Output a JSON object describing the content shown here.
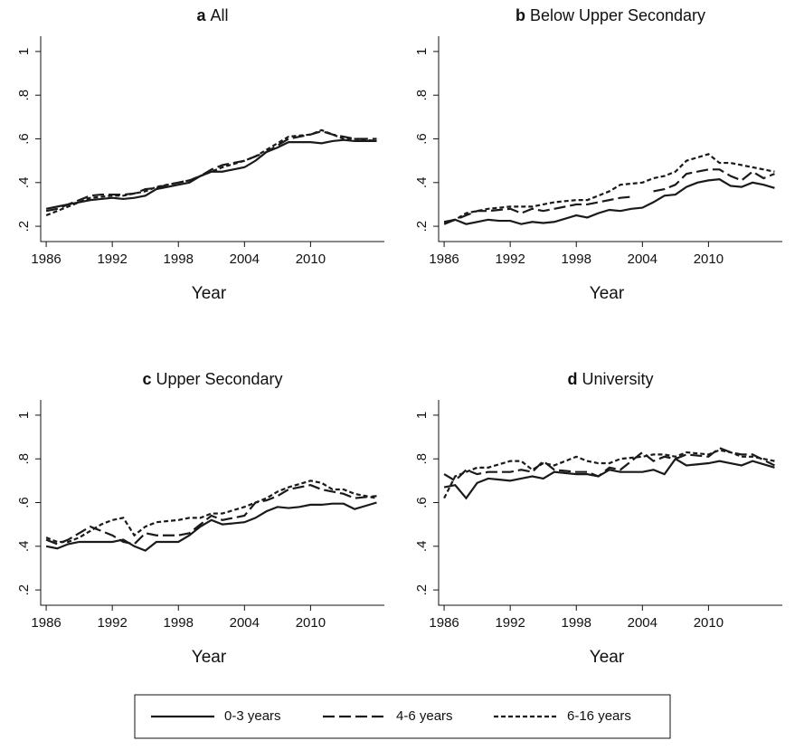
{
  "chart_data": [
    {
      "type": "line",
      "label": "a",
      "title": "All",
      "xlabel": "Year",
      "x": [
        1986,
        1987,
        1988,
        1989,
        1990,
        1991,
        1992,
        1993,
        1994,
        1995,
        1996,
        1997,
        1998,
        1999,
        2000,
        2001,
        2002,
        2003,
        2004,
        2005,
        2006,
        2007,
        2008,
        2009,
        2010,
        2011,
        2012,
        2013,
        2014,
        2015,
        2016
      ],
      "xlim": [
        1985.5,
        2016.7
      ],
      "xticks": [
        1986,
        1992,
        1998,
        2004,
        2010
      ],
      "ylim": [
        0.13,
        1.07
      ],
      "yticks": [
        {
          "value": 0.2,
          "label": ".2"
        },
        {
          "value": 0.4,
          "label": ".4"
        },
        {
          "value": 0.6,
          "label": ".6"
        },
        {
          "value": 0.8,
          "label": ".8"
        },
        1
      ],
      "series": [
        {
          "name": "0-3 years",
          "color": "#1a1a1a",
          "style": "solid",
          "values": [
            0.28,
            0.29,
            0.3,
            0.31,
            0.32,
            0.325,
            0.33,
            0.325,
            0.33,
            0.34,
            0.37,
            0.38,
            0.39,
            0.4,
            0.43,
            0.45,
            0.45,
            0.46,
            0.47,
            0.5,
            0.54,
            0.56,
            0.585,
            0.585,
            0.585,
            0.58,
            0.59,
            0.595,
            0.59,
            0.59,
            0.59
          ]
        },
        {
          "name": "4-6 years",
          "color": "#1a1a1a",
          "style": "longdash",
          "values": [
            0.27,
            0.28,
            0.3,
            0.32,
            0.34,
            0.345,
            0.345,
            0.345,
            0.35,
            0.37,
            0.375,
            0.39,
            0.4,
            0.41,
            0.43,
            0.46,
            0.48,
            0.49,
            0.5,
            0.52,
            0.54,
            0.57,
            0.6,
            0.61,
            0.62,
            0.635,
            0.62,
            0.61,
            0.6,
            0.6,
            0.6
          ]
        },
        {
          "name": "6-16 years",
          "color": "#1a1a1a",
          "style": "shortdash",
          "values": [
            0.25,
            0.27,
            0.29,
            0.31,
            0.33,
            0.335,
            0.34,
            0.34,
            0.35,
            0.36,
            0.38,
            0.39,
            0.4,
            0.41,
            0.43,
            0.45,
            0.47,
            0.485,
            0.5,
            0.52,
            0.55,
            0.58,
            0.61,
            0.615,
            0.62,
            0.64,
            0.62,
            0.6,
            0.6,
            0.595,
            0.59
          ]
        }
      ]
    },
    {
      "type": "line",
      "label": "b",
      "title": "Below Upper Secondary",
      "xlabel": "Year",
      "x": [
        1986,
        1987,
        1988,
        1989,
        1990,
        1991,
        1992,
        1993,
        1994,
        1995,
        1996,
        1997,
        1998,
        1999,
        2000,
        2001,
        2002,
        2003,
        2004,
        2005,
        2006,
        2007,
        2008,
        2009,
        2010,
        2011,
        2012,
        2013,
        2014,
        2015,
        2016
      ],
      "xlim": [
        1985.5,
        2016.7
      ],
      "xticks": [
        1986,
        1992,
        1998,
        2004,
        2010
      ],
      "ylim": [
        0.13,
        1.07
      ],
      "yticks": [
        {
          "value": 0.2,
          "label": ".2"
        },
        {
          "value": 0.4,
          "label": ".4"
        },
        {
          "value": 0.6,
          "label": ".6"
        },
        {
          "value": 0.8,
          "label": ".8"
        },
        1
      ],
      "series": [
        {
          "name": "0-3 years",
          "color": "#1a1a1a",
          "style": "solid",
          "values": [
            0.21,
            0.23,
            0.21,
            0.22,
            0.23,
            0.225,
            0.225,
            0.21,
            0.22,
            0.215,
            0.22,
            0.235,
            0.25,
            0.24,
            0.26,
            0.275,
            0.27,
            0.28,
            0.285,
            0.31,
            0.34,
            0.345,
            0.38,
            0.4,
            0.41,
            0.415,
            0.385,
            0.38,
            0.4,
            0.39,
            0.375
          ]
        },
        {
          "name": "4-6 years",
          "color": "#1a1a1a",
          "style": "longdash",
          "values": [
            0.22,
            0.23,
            0.25,
            0.27,
            0.27,
            0.275,
            0.28,
            0.26,
            0.28,
            0.27,
            0.28,
            0.29,
            0.3,
            0.3,
            0.31,
            0.32,
            0.33,
            0.335,
            null,
            0.36,
            0.37,
            0.39,
            0.44,
            0.45,
            0.46,
            0.46,
            0.43,
            0.41,
            0.45,
            0.42,
            0.44
          ]
        },
        {
          "name": "6-16 years",
          "color": "#1a1a1a",
          "style": "shortdash",
          "values": [
            0.22,
            0.23,
            0.26,
            0.27,
            0.28,
            0.285,
            0.29,
            0.29,
            0.29,
            0.3,
            0.31,
            0.315,
            0.32,
            0.32,
            0.34,
            0.36,
            0.39,
            0.395,
            0.4,
            0.42,
            0.43,
            0.45,
            0.5,
            0.515,
            0.53,
            0.49,
            0.49,
            0.48,
            0.47,
            0.46,
            0.45
          ]
        }
      ]
    },
    {
      "type": "line",
      "label": "c",
      "title": "Upper Secondary",
      "xlabel": "Year",
      "x": [
        1986,
        1987,
        1988,
        1989,
        1990,
        1991,
        1992,
        1993,
        1994,
        1995,
        1996,
        1997,
        1998,
        1999,
        2000,
        2001,
        2002,
        2003,
        2004,
        2005,
        2006,
        2007,
        2008,
        2009,
        2010,
        2011,
        2012,
        2013,
        2014,
        2015,
        2016
      ],
      "xlim": [
        1985.5,
        2016.7
      ],
      "xticks": [
        1986,
        1992,
        1998,
        2004,
        2010
      ],
      "ylim": [
        0.13,
        1.07
      ],
      "yticks": [
        {
          "value": 0.2,
          "label": ".2"
        },
        {
          "value": 0.4,
          "label": ".4"
        },
        {
          "value": 0.6,
          "label": ".6"
        },
        {
          "value": 0.8,
          "label": ".8"
        },
        1
      ],
      "series": [
        {
          "name": "0-3 years",
          "color": "#1a1a1a",
          "style": "solid",
          "values": [
            0.4,
            0.39,
            0.41,
            0.42,
            0.42,
            0.42,
            0.42,
            0.43,
            0.4,
            0.38,
            0.42,
            0.42,
            0.42,
            0.45,
            0.49,
            0.52,
            0.5,
            0.505,
            0.51,
            0.53,
            0.56,
            0.58,
            0.575,
            0.58,
            0.59,
            0.59,
            0.595,
            0.595,
            0.57,
            0.585,
            0.6
          ]
        },
        {
          "name": "4-6 years",
          "color": "#1a1a1a",
          "style": "longdash",
          "values": [
            0.43,
            0.41,
            0.43,
            0.46,
            0.49,
            0.47,
            0.45,
            0.42,
            0.41,
            0.46,
            0.45,
            0.45,
            0.45,
            0.46,
            0.5,
            0.54,
            0.52,
            0.53,
            0.54,
            0.6,
            0.61,
            0.63,
            0.66,
            0.67,
            0.68,
            0.66,
            0.65,
            0.64,
            0.62,
            0.625,
            0.63
          ]
        },
        {
          "name": "6-16 years",
          "color": "#1a1a1a",
          "style": "shortdash",
          "values": [
            0.44,
            0.42,
            0.42,
            0.44,
            0.47,
            0.5,
            0.52,
            0.53,
            0.45,
            0.49,
            0.51,
            0.515,
            0.52,
            0.53,
            0.53,
            0.55,
            0.55,
            0.565,
            0.58,
            0.6,
            0.62,
            0.65,
            0.67,
            0.685,
            0.7,
            0.69,
            0.66,
            0.66,
            0.64,
            0.63,
            0.62
          ]
        }
      ]
    },
    {
      "type": "line",
      "label": "d",
      "title": "University",
      "xlabel": "Year",
      "x": [
        1986,
        1987,
        1988,
        1989,
        1990,
        1991,
        1992,
        1993,
        1994,
        1995,
        1996,
        1997,
        1998,
        1999,
        2000,
        2001,
        2002,
        2003,
        2004,
        2005,
        2006,
        2007,
        2008,
        2009,
        2010,
        2011,
        2012,
        2013,
        2014,
        2015,
        2016
      ],
      "xlim": [
        1985.5,
        2016.7
      ],
      "xticks": [
        1986,
        1992,
        1998,
        2004,
        2010
      ],
      "ylim": [
        0.13,
        1.07
      ],
      "yticks": [
        {
          "value": 0.2,
          "label": ".2"
        },
        {
          "value": 0.4,
          "label": ".4"
        },
        {
          "value": 0.6,
          "label": ".6"
        },
        {
          "value": 0.8,
          "label": ".8"
        },
        1
      ],
      "series": [
        {
          "name": "0-3 years",
          "color": "#1a1a1a",
          "style": "solid",
          "values": [
            0.67,
            0.68,
            0.62,
            0.69,
            0.71,
            0.705,
            0.7,
            0.71,
            0.72,
            0.71,
            0.74,
            0.735,
            0.73,
            0.73,
            0.72,
            0.75,
            0.74,
            0.74,
            0.74,
            0.75,
            0.73,
            0.8,
            0.77,
            0.775,
            0.78,
            0.79,
            0.78,
            0.77,
            0.79,
            0.775,
            0.76
          ]
        },
        {
          "name": "4-6 years",
          "color": "#1a1a1a",
          "style": "longdash",
          "values": [
            0.73,
            0.7,
            0.75,
            0.73,
            0.74,
            0.74,
            0.74,
            0.75,
            0.74,
            0.79,
            0.75,
            0.745,
            0.74,
            0.74,
            0.72,
            0.76,
            0.75,
            0.79,
            0.83,
            0.79,
            0.81,
            0.8,
            0.82,
            0.815,
            0.81,
            0.85,
            0.83,
            0.82,
            0.82,
            0.795,
            0.77
          ]
        },
        {
          "name": "6-16 years",
          "color": "#1a1a1a",
          "style": "shortdash",
          "values": [
            0.62,
            0.72,
            0.74,
            0.76,
            0.76,
            0.775,
            0.79,
            0.79,
            0.75,
            0.78,
            0.77,
            0.79,
            0.81,
            0.79,
            0.78,
            0.78,
            0.8,
            0.805,
            0.81,
            0.82,
            0.82,
            0.81,
            0.83,
            0.825,
            0.82,
            0.84,
            0.83,
            0.81,
            0.81,
            0.8,
            0.79
          ]
        }
      ]
    }
  ]
}
